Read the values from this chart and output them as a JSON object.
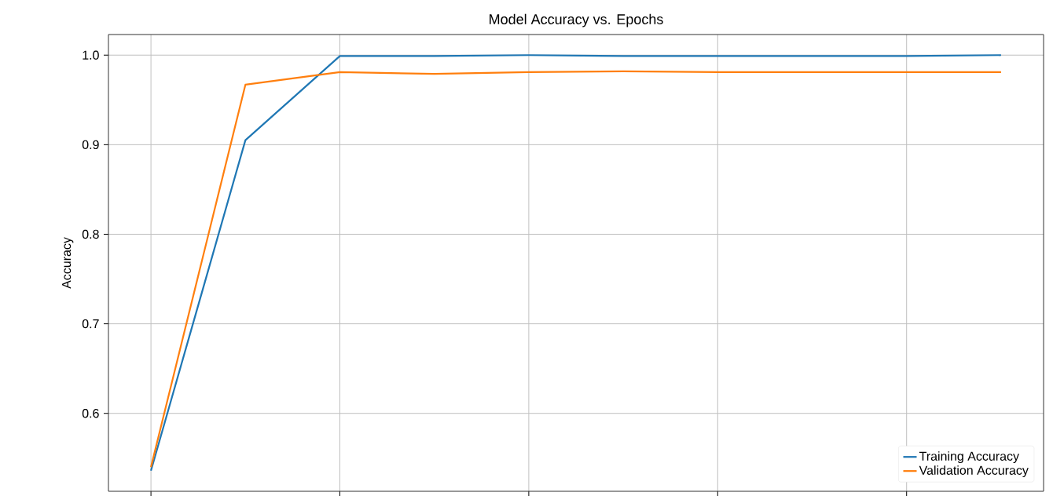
{
  "chart_data": {
    "type": "line",
    "title": "Model Accuracy vs. Epochs",
    "ylabel": "Accuracy",
    "categories": [
      null,
      null,
      null,
      null,
      null,
      null,
      null,
      null,
      null,
      null
    ],
    "series": [
      {
        "name": "Training Accuracy",
        "color": "#1f77b4",
        "values": [
          0.536,
          0.905,
          0.999,
          0.999,
          1.0,
          0.999,
          0.999,
          0.999,
          0.999,
          1.0
        ]
      },
      {
        "name": "Validation Accuracy",
        "color": "#ff7f0e",
        "values": [
          0.54,
          0.967,
          0.981,
          0.979,
          0.981,
          0.982,
          0.981,
          0.981,
          0.981,
          0.981
        ]
      }
    ],
    "ylim": [
      0.513,
      1.023
    ],
    "yticks": [
      {
        "value": 0.6,
        "label": "0.6"
      },
      {
        "value": 0.7,
        "label": "0.7"
      },
      {
        "value": 0.8,
        "label": "0.8"
      },
      {
        "value": 0.9,
        "label": "0.9"
      },
      {
        "value": 1.0,
        "label": "1.0"
      }
    ],
    "tick_labels": "y",
    "grid": true,
    "legend": "bottom right",
    "marker": "none",
    "line_style": "solid"
  }
}
